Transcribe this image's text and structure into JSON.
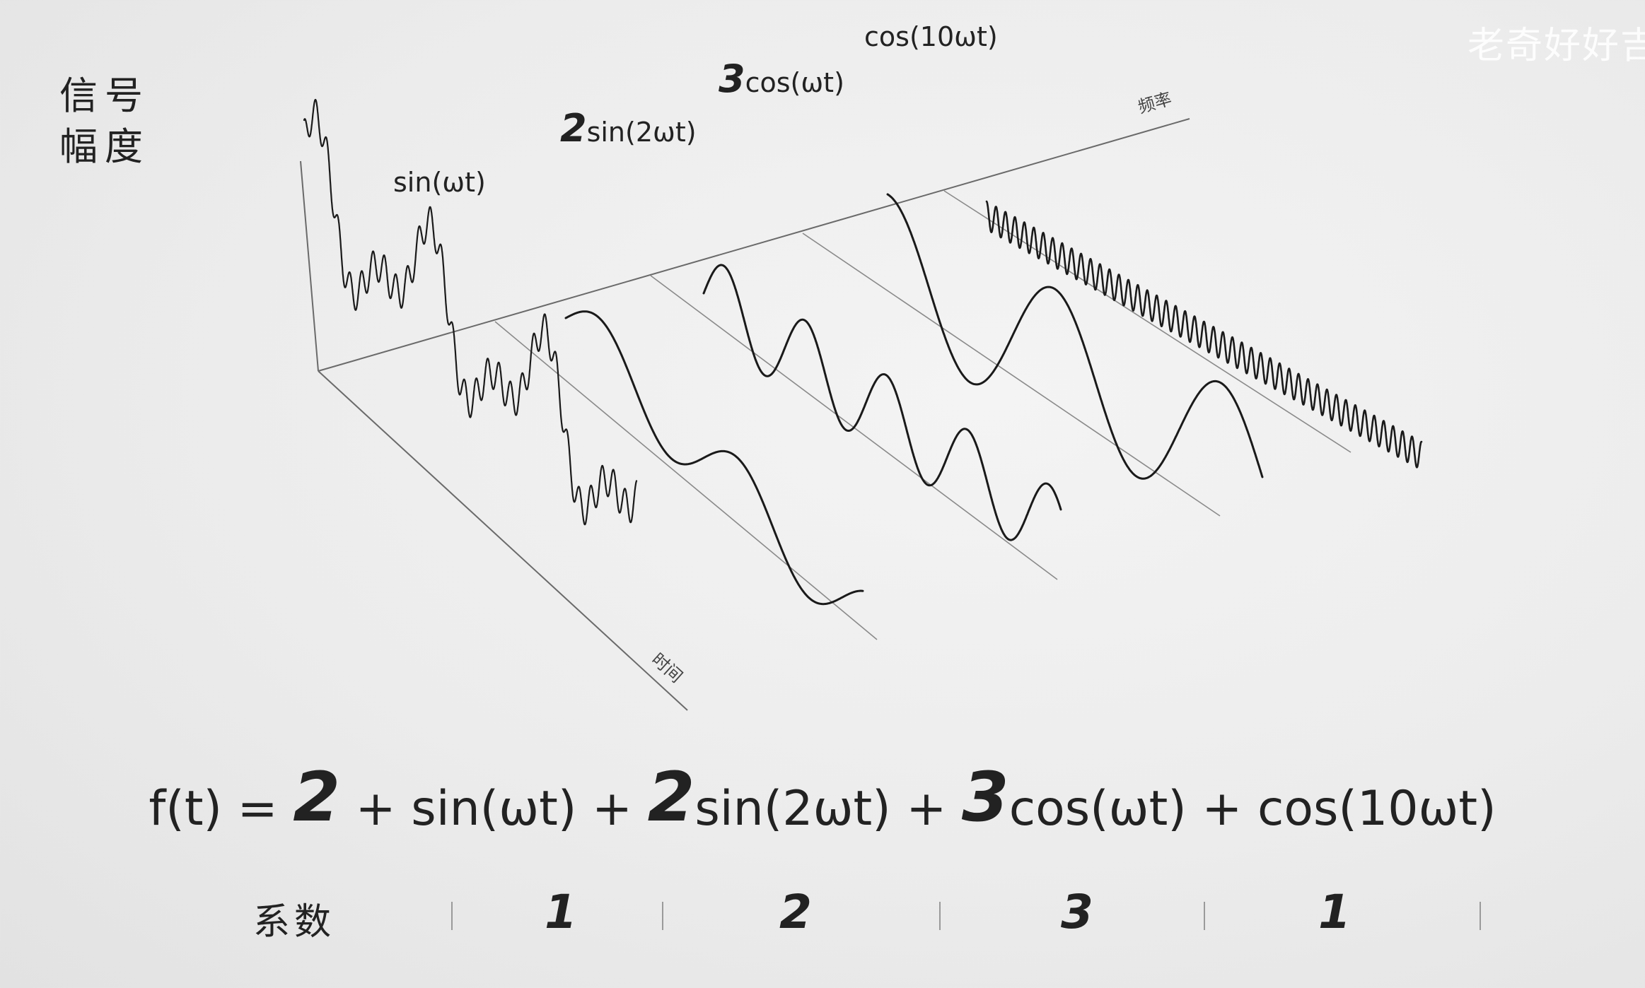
{
  "watermark": "老奇好好吉",
  "y_axis": {
    "line1": "信号",
    "line2": "幅度"
  },
  "axes": {
    "time": "时间",
    "frequency": "频率"
  },
  "wave_labels": {
    "sin": "sin(ωt)",
    "sin2_coef": "2",
    "sin2": "sin(2ωt)",
    "cos_coef": "3",
    "cos": "cos(ωt)",
    "cos10": "cos(10ωt)"
  },
  "formula": {
    "lhs": "f(t) =",
    "c0": "2",
    "t1": "+ sin(ωt) +",
    "c2": "2",
    "t2": "sin(2ωt) +",
    "c3": "3",
    "t3": "cos(ωt) + cos(10ωt)"
  },
  "coefficients": {
    "label": "系数",
    "values": [
      "1",
      "2",
      "3",
      "1"
    ]
  }
}
